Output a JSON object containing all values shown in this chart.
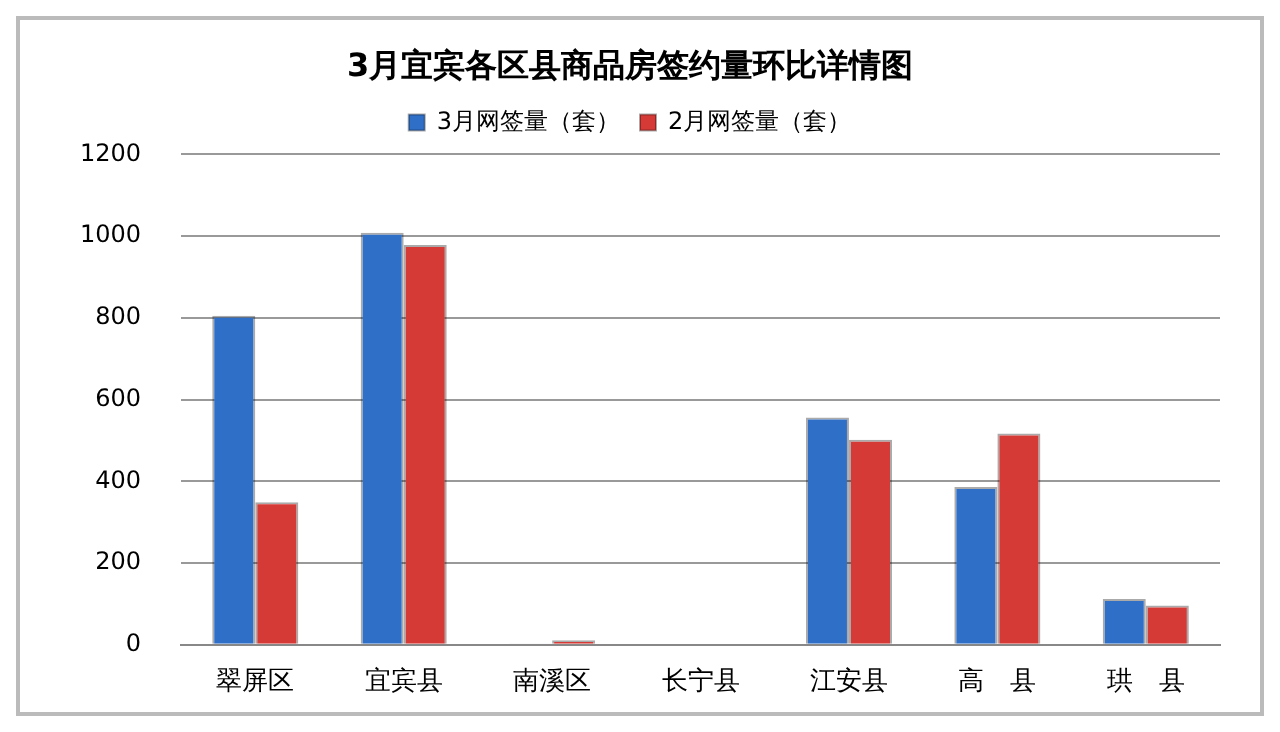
{
  "chart_data": {
    "type": "bar",
    "title": "3月宜宾各区县商品房签约量环比详情图",
    "categories": [
      "翠屏区",
      "宜宾县",
      "南溪区",
      "长宁县",
      "江安县",
      "高　县",
      "珙　县"
    ],
    "series": [
      {
        "name": "3月网签量（套）",
        "color": "#2f6fc8",
        "values": [
          805,
          1008,
          3,
          0,
          556,
          386,
          112
        ]
      },
      {
        "name": "2月网签量（套）",
        "color": "#d63a36",
        "values": [
          349,
          978,
          11,
          0,
          502,
          517,
          96
        ]
      }
    ],
    "ylim": [
      0,
      1200
    ],
    "yticks": [
      0,
      200,
      400,
      600,
      800,
      1000,
      1200
    ],
    "grid": "y",
    "legend": "top"
  }
}
